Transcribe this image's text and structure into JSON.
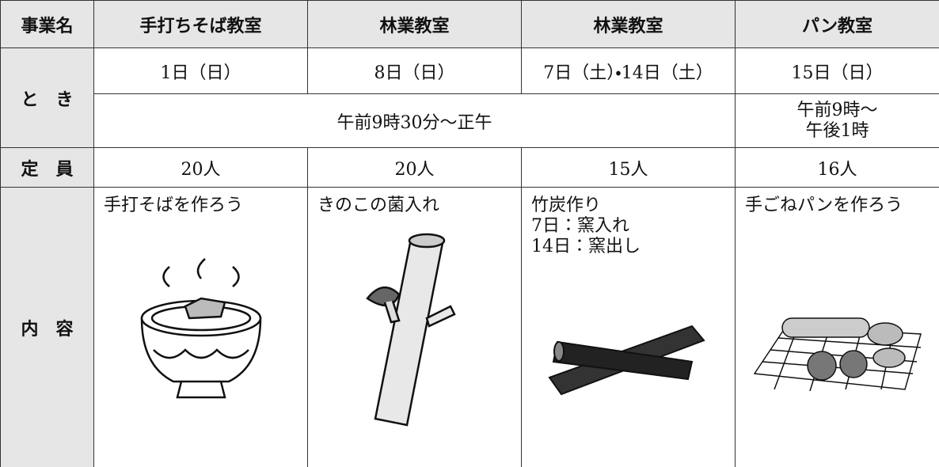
{
  "table": {
    "header": [
      "事業名",
      "手打ちそば教室",
      "林業教室",
      "林業教室",
      "パン教室"
    ],
    "dates": {
      "label": "と　き",
      "cells": [
        "1日（日）",
        "8日（日）",
        "7日（土）・14日（土）",
        "15日（日）"
      ]
    },
    "times": {
      "cells": [
        [
          "午前9時30分〜正午"
        ],
        [
          "午前9時〜",
          "午後1時"
        ]
      ]
    },
    "capacity": {
      "label": "定　員",
      "cells": [
        "20人",
        "20人",
        "15人",
        "16人"
      ]
    },
    "content": {
      "label": "内　容",
      "cells": [
        [
          "手打そばを作ろう"
        ],
        [
          "きのこの菌入れ"
        ],
        [
          "竹炭作り",
          "7日：窯入れ",
          "14日：窯出し"
        ],
        [
          "手ごねパンを作ろう"
        ]
      ]
    }
  }
}
